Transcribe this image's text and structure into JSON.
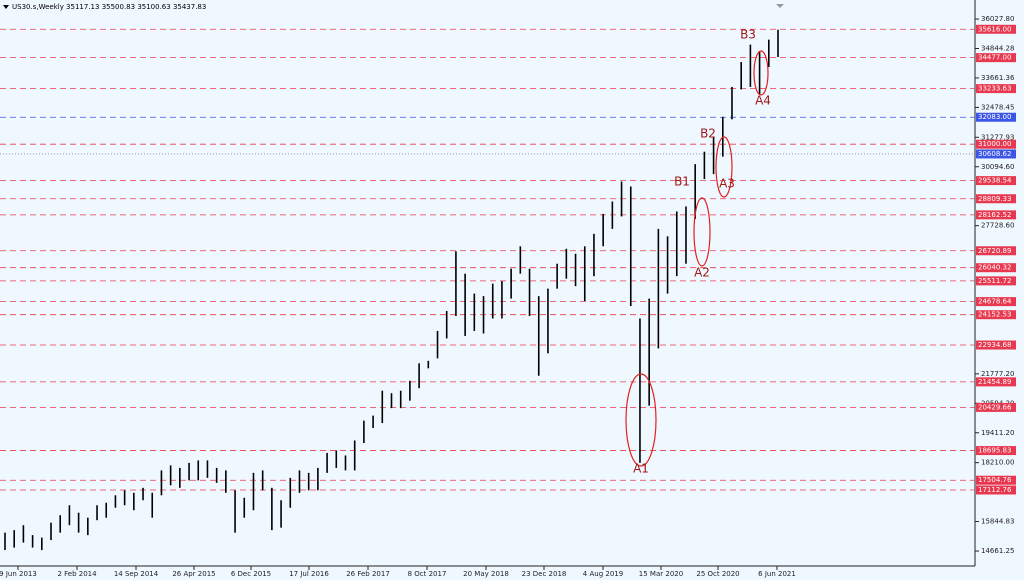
{
  "chart_data": {
    "type": "ohlc-range",
    "title": "US30.s,Weekly  35117.13 35500.83 35100.63 35437.83",
    "x_labels": [
      "9 Jun 2013",
      "2 Feb 2014",
      "14 Sep 2014",
      "26 Apr 2015",
      "6 Dec 2015",
      "17 Jul 2016",
      "26 Feb 2017",
      "8 Oct 2017",
      "20 May 2018",
      "23 Dec 2018",
      "4 Aug 2019",
      "15 Mar 2020",
      "25 Oct 2020",
      "6 Jun 2021"
    ],
    "ylim": [
      14100,
      36310
    ],
    "yticks": [
      {
        "value": 36027.8,
        "label": "36027.80"
      },
      34844.28,
      33661.36,
      32478.45,
      31277.93,
      {
        "value": 30094.6,
        "label": "30094.60"
      },
      {
        "value": 27728.6,
        "label": "27728.60"
      },
      {
        "value": 21777.2,
        "label": "21777.20"
      },
      {
        "value": 20594.2,
        "label": "20594.20"
      },
      {
        "value": 19411.2,
        "label": "19411.20"
      },
      {
        "value": 18210,
        "label": "18210.00"
      },
      15844.83,
      14661.25
    ],
    "bars": {
      "color": "#000000",
      "low": [
        14700,
        14800,
        15000,
        14800,
        14700,
        15100,
        15400,
        15700,
        15400,
        15300,
        15900,
        16000,
        16400,
        16500,
        16300,
        16700,
        16000,
        16900,
        17300,
        17200,
        17500,
        17500,
        17600,
        17400,
        17000,
        15400,
        16000,
        16300,
        17100,
        15500,
        15600,
        16400,
        17000,
        17100,
        17100,
        17800,
        18000,
        17900,
        17900,
        19000,
        19600,
        19800,
        20400,
        20400,
        20700,
        21200,
        22000,
        22400,
        23200,
        24100,
        23300,
        23500,
        23400,
        24000,
        24000,
        24800,
        25800,
        24100,
        21700,
        22600,
        25200,
        25600,
        25300,
        24700,
        25700,
        26900,
        27600,
        28100,
        24500,
        18200,
        20500,
        22800,
        25000,
        25700,
        26200,
        28000,
        29600,
        29800,
        30500,
        32000,
        33200,
        33300,
        33000,
        34100,
        34500
      ],
      "high": [
        15400,
        15500,
        15700,
        15300,
        15200,
        15800,
        16100,
        16500,
        16200,
        16000,
        16500,
        16600,
        16900,
        17100,
        17000,
        17200,
        17000,
        17900,
        18100,
        18000,
        18200,
        18300,
        18300,
        18000,
        17900,
        17100,
        16800,
        17800,
        17900,
        17200,
        16700,
        17600,
        17900,
        17800,
        18000,
        18600,
        18700,
        18500,
        19100,
        19900,
        20100,
        21100,
        21000,
        21100,
        21500,
        22200,
        22300,
        23500,
        24300,
        26700,
        25800,
        25000,
        24900,
        25400,
        25500,
        26000,
        26900,
        26000,
        24900,
        25200,
        26200,
        26800,
        26600,
        26900,
        27400,
        28200,
        28700,
        29500,
        29300,
        24000,
        24800,
        27600,
        27300,
        28300,
        28500,
        30200,
        30700,
        31300,
        32100,
        33300,
        34300,
        35000,
        34700,
        35200,
        35600
      ]
    },
    "levels": [
      {
        "value": 35616,
        "label": "35616.00",
        "color": "#e8384f"
      },
      {
        "value": 34477,
        "label": "34477.00",
        "color": "#e8384f"
      },
      {
        "value": 33233.63,
        "label": "33233.63",
        "color": "#e8384f"
      },
      {
        "value": 32083,
        "label": "32083.00",
        "color": "#3b55e6"
      },
      {
        "value": 31000,
        "label": "31000.00",
        "color": "#e8384f"
      },
      {
        "value": 30608.62,
        "label": "30608.62",
        "color": "#3b55e6"
      },
      {
        "value": 29538.54,
        "label": "29538.54",
        "color": "#e8384f"
      },
      {
        "value": 28809.33,
        "label": "28809.33",
        "color": "#e8384f"
      },
      {
        "value": 28162.52,
        "label": "28162.52",
        "color": "#e8384f"
      },
      {
        "value": 26720.89,
        "label": "26720.89",
        "color": "#e8384f"
      },
      {
        "value": 26040.32,
        "label": "26040.32",
        "color": "#e8384f"
      },
      {
        "value": 25511.72,
        "label": "25511.72",
        "color": "#e8384f"
      },
      {
        "value": 24678.64,
        "label": "24678.64",
        "color": "#e8384f"
      },
      {
        "value": 24152.53,
        "label": "24152.53",
        "color": "#e8384f"
      },
      {
        "value": 22934.68,
        "label": "22934.68",
        "color": "#e8384f"
      },
      {
        "value": 21454.89,
        "label": "21454.89",
        "color": "#e8384f"
      },
      {
        "value": 20429.66,
        "label": "20429.66",
        "color": "#e8384f"
      },
      {
        "value": 18695.83,
        "label": "18695.83",
        "color": "#e8384f"
      },
      {
        "value": 17504.76,
        "label": "17504.76",
        "color": "#e8384f"
      },
      {
        "value": 17112.76,
        "label": "17112.76",
        "color": "#e8384f"
      }
    ],
    "annotations": [
      "A1",
      "A2",
      "A3",
      "A4",
      "B1",
      "B2",
      "B3"
    ]
  }
}
